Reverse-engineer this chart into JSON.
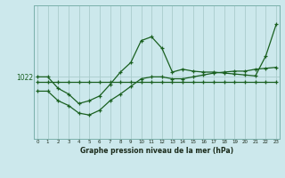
{
  "background_color": "#cce8ec",
  "grid_color": "#aacccc",
  "line_color": "#1a6020",
  "title": "Graphe pression niveau de la mer (hPa)",
  "ylabel_value": "1022",
  "x_hours": [
    0,
    1,
    2,
    3,
    4,
    5,
    6,
    7,
    8,
    9,
    10,
    11,
    12,
    13,
    14,
    15,
    16,
    17,
    18,
    19,
    20,
    21,
    22,
    23
  ],
  "line_main": [
    1022.0,
    1022.0,
    1020.8,
    1020.2,
    1019.2,
    1019.5,
    1020.0,
    1021.2,
    1022.5,
    1023.5,
    1025.8,
    1026.2,
    1025.0,
    1022.5,
    1022.8,
    1022.6,
    1022.5,
    1022.5,
    1022.4,
    1022.3,
    1022.2,
    1022.1,
    1024.2,
    1027.5
  ],
  "line_flat": [
    1021.5,
    1021.5,
    1021.5,
    1021.5,
    1021.5,
    1021.5,
    1021.5,
    1021.5,
    1021.5,
    1021.5,
    1021.5,
    1021.5,
    1021.5,
    1021.5,
    1021.5,
    1021.5,
    1021.5,
    1021.5,
    1021.5,
    1021.5,
    1021.5,
    1021.5,
    1021.5,
    1021.5
  ],
  "line_trend": [
    1020.5,
    1020.5,
    1019.5,
    1019.0,
    1018.2,
    1018.0,
    1018.5,
    1019.5,
    1020.2,
    1021.0,
    1021.8,
    1022.0,
    1022.0,
    1021.8,
    1021.8,
    1022.0,
    1022.2,
    1022.4,
    1022.5,
    1022.6,
    1022.6,
    1022.8,
    1022.9,
    1023.0
  ],
  "ylim_min": 1015.5,
  "ylim_max": 1029.5,
  "ref_line": 1022.0,
  "figwidth": 3.2,
  "figheight": 2.0,
  "dpi": 100
}
